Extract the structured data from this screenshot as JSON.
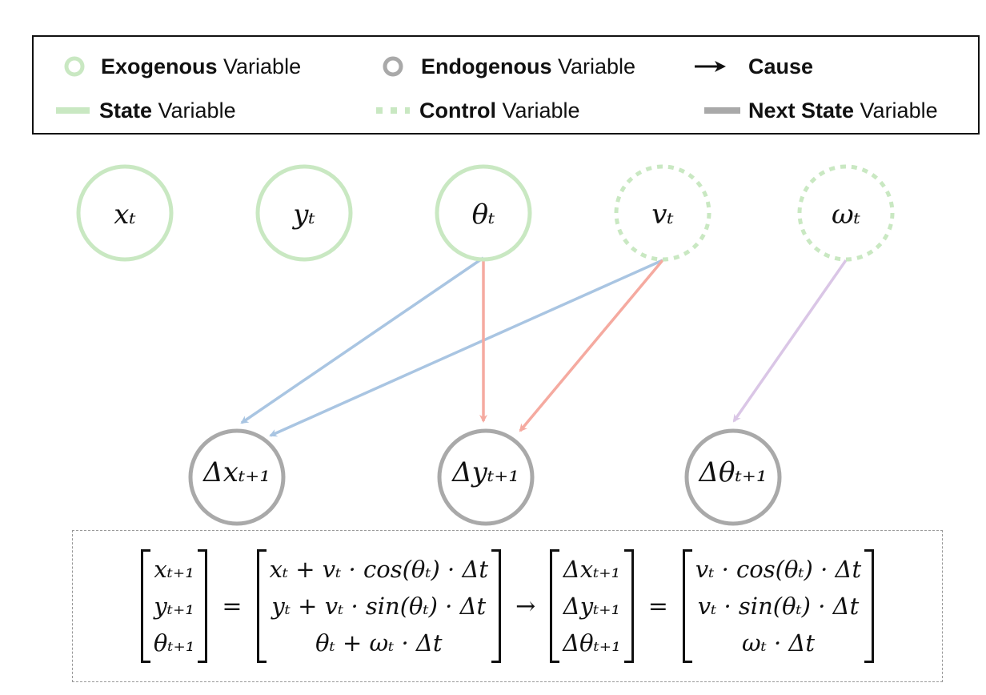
{
  "legend": {
    "exogenous": {
      "bold": "Exogenous",
      "rest": " Variable"
    },
    "endogenous": {
      "bold": "Endogenous",
      "rest": " Variable"
    },
    "cause": {
      "bold": "Cause"
    },
    "state": {
      "bold": "State",
      "rest": " Variable"
    },
    "control": {
      "bold": "Control",
      "rest": " Variable"
    },
    "next_state": {
      "bold": "Next State",
      "rest": " Variable"
    }
  },
  "colors": {
    "exogenous": "#c9e8c2",
    "endogenous": "#a9a9a9",
    "arrow_blue": "#a9c5e2",
    "arrow_red": "#f5aaa0",
    "arrow_purple": "#dac6e6"
  },
  "nodes": {
    "top": [
      "xₜ",
      "yₜ",
      "θₜ",
      "vₜ",
      "ωₜ"
    ],
    "bottom": [
      "Δxₜ₊₁",
      "Δyₜ₊₁",
      "Δθₜ₊₁"
    ]
  },
  "equation": {
    "lhs": [
      "xₜ₊₁",
      "yₜ₊₁",
      "θₜ₊₁"
    ],
    "eq1": "=",
    "rhs1": [
      "xₜ + vₜ · cos(θₜ) · Δt",
      "yₜ + vₜ · sin(θₜ) · Δt",
      "θₜ + ωₜ · Δt"
    ],
    "arrow": "→",
    "delta": [
      "Δxₜ₊₁",
      "Δyₜ₊₁",
      "Δθₜ₊₁"
    ],
    "eq2": "=",
    "rhs2": [
      "vₜ · cos(θₜ) · Δt",
      "vₜ · sin(θₜ) · Δt",
      "ωₜ · Δt"
    ]
  }
}
